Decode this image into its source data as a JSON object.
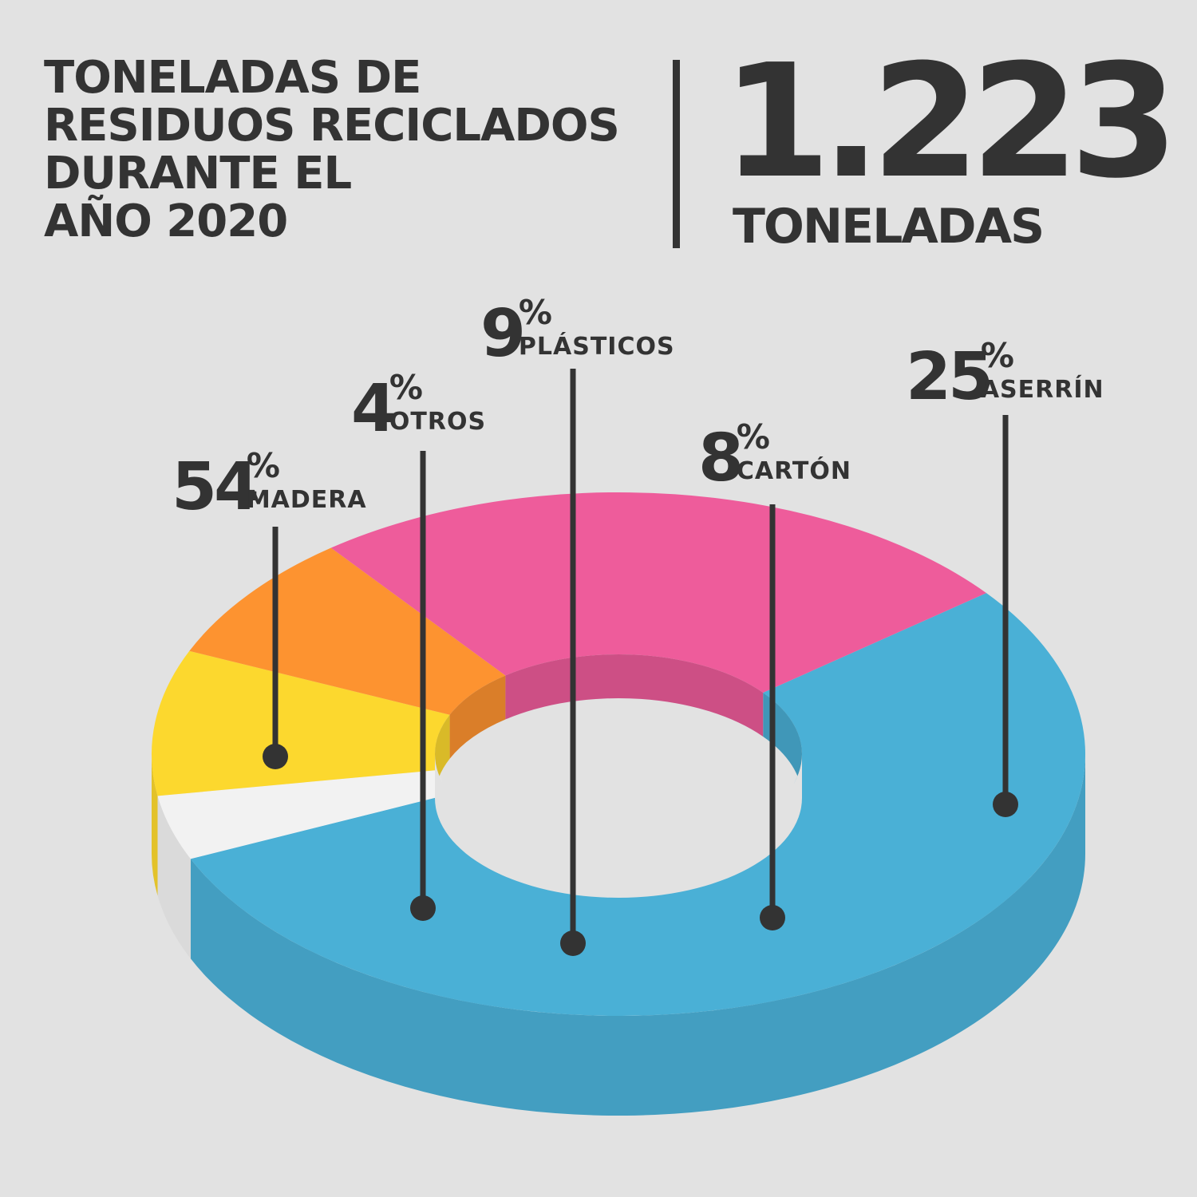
{
  "header": {
    "title_lines": [
      "TONELADAS DE",
      "RESIDUOS RECICLADOS",
      "DURANTE EL",
      "AÑO 2020"
    ],
    "total_value": "1.223",
    "total_unit": "TONELADAS"
  },
  "chart_data": {
    "type": "pie",
    "title": "TONELADAS DE RESIDUOS RECICLADOS DURANTE EL AÑO 2020",
    "unit": "%",
    "slices": [
      {
        "label": "MADERA",
        "value": 54,
        "pct_text": "54",
        "color": "#4ab0d6"
      },
      {
        "label": "OTROS",
        "value": 4,
        "pct_text": "4",
        "color": "#f2f2f2"
      },
      {
        "label": "PLÁSTICOS",
        "value": 9,
        "pct_text": "9",
        "color": "#fcd82e"
      },
      {
        "label": "CARTÓN",
        "value": 8,
        "pct_text": "8",
        "color": "#fd9330"
      },
      {
        "label": "ASERRÍN",
        "value": 25,
        "pct_text": "25",
        "color": "#ee5c9b"
      }
    ]
  }
}
